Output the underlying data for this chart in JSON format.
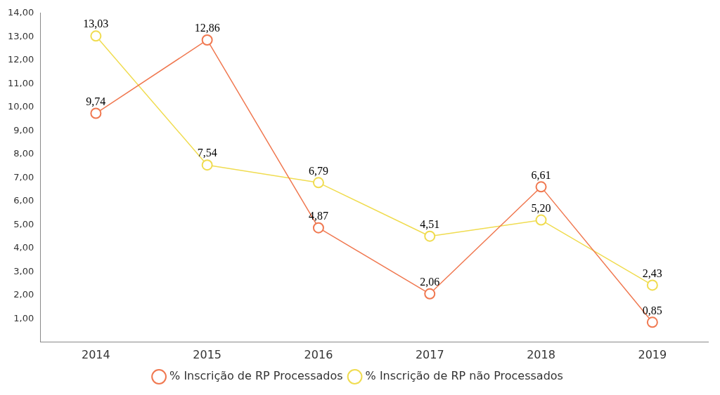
{
  "chart_data": {
    "type": "line",
    "categories": [
      "2014",
      "2015",
      "2016",
      "2017",
      "2018",
      "2019"
    ],
    "series": [
      {
        "name": "% Inscrição de RP Processados",
        "color": "#f07850",
        "values": [
          9.74,
          12.86,
          4.87,
          2.06,
          6.61,
          0.85
        ],
        "value_labels": [
          "9,74",
          "12,86",
          "4,87",
          "2,06",
          "6,61",
          "0,85"
        ]
      },
      {
        "name": "% Inscrição de RP não Processados",
        "color": "#f0dc50",
        "values": [
          13.03,
          7.54,
          6.79,
          4.51,
          5.2,
          2.43
        ],
        "value_labels": [
          "13,03",
          "7,54",
          "6,79",
          "4,51",
          "5,20",
          "2,43"
        ]
      }
    ],
    "ylim": [
      0,
      14
    ],
    "yticks": [
      {
        "value": 1,
        "label": "1,00"
      },
      {
        "value": 2,
        "label": "2,00"
      },
      {
        "value": 3,
        "label": "3,00"
      },
      {
        "value": 4,
        "label": "4,00"
      },
      {
        "value": 5,
        "label": "5,00"
      },
      {
        "value": 6,
        "label": "6,00"
      },
      {
        "value": 7,
        "label": "7,00"
      },
      {
        "value": 8,
        "label": "8,00"
      },
      {
        "value": 9,
        "label": "9,00"
      },
      {
        "value": 10,
        "label": "10,00"
      },
      {
        "value": 11,
        "label": "11,00"
      },
      {
        "value": 12,
        "label": "12,00"
      },
      {
        "value": 13,
        "label": "13,00"
      },
      {
        "value": 14,
        "label": "14,00"
      }
    ],
    "grid": false,
    "legend": "bottom",
    "marker": "circle",
    "line_style": "solid"
  }
}
